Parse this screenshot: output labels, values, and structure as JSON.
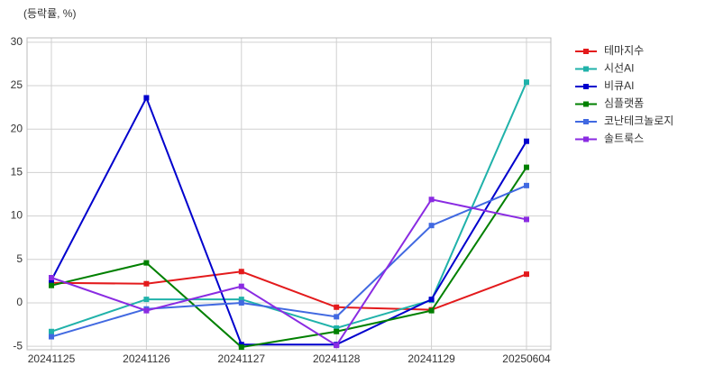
{
  "chart_data": {
    "type": "line",
    "y_axis_label": "(등락률, %)",
    "categories": [
      "20241125",
      "20241126",
      "20241127",
      "20241128",
      "20241129",
      "20250604"
    ],
    "series": [
      {
        "name": "테마지수",
        "color": "#e31a1c",
        "values": [
          2.3,
          2.2,
          3.6,
          -0.5,
          -0.8,
          3.3
        ]
      },
      {
        "name": "시선AI",
        "color": "#20b2aa",
        "values": [
          -3.3,
          0.4,
          0.4,
          -2.9,
          0.3,
          25.4
        ]
      },
      {
        "name": "비큐AI",
        "color": "#0000cd",
        "values": [
          2.6,
          23.6,
          -4.8,
          -4.8,
          0.4,
          18.6
        ]
      },
      {
        "name": "심플랫폼",
        "color": "#008000",
        "values": [
          2.0,
          4.6,
          -5.1,
          -3.3,
          -0.9,
          15.6
        ]
      },
      {
        "name": "코난테크놀로지",
        "color": "#4169e1",
        "values": [
          -3.9,
          -0.7,
          0.0,
          -1.6,
          8.9,
          13.5
        ]
      },
      {
        "name": "솔트룩스",
        "color": "#8a2be2",
        "values": [
          2.9,
          -0.9,
          1.9,
          -4.9,
          11.9,
          9.6
        ]
      }
    ],
    "ylim": [
      -5.4,
      30.5
    ],
    "yticks": [
      -5,
      0,
      5,
      10,
      15,
      20,
      25,
      30
    ],
    "grid": true,
    "legend": "outside-right"
  }
}
